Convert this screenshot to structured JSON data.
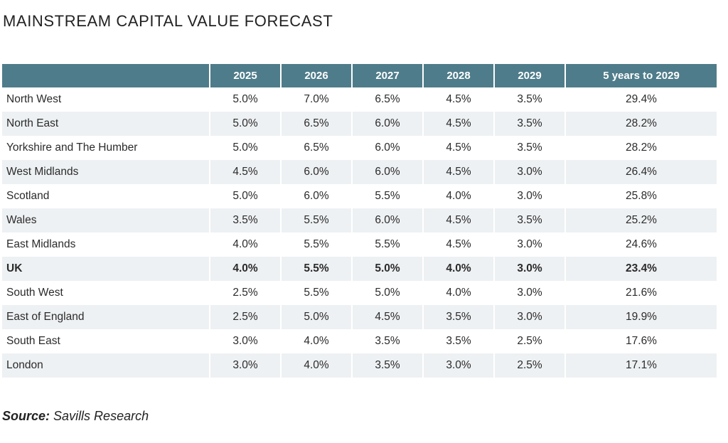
{
  "chart_data": {
    "type": "table",
    "title": "MAINSTREAM CAPITAL VALUE FORECAST",
    "columns": [
      "",
      "2025",
      "2026",
      "2027",
      "2028",
      "2029",
      "5 years to 2029"
    ],
    "rows": [
      {
        "region": "North West",
        "values": [
          "5.0%",
          "7.0%",
          "6.5%",
          "4.5%",
          "3.5%",
          "29.4%"
        ],
        "bold": false
      },
      {
        "region": "North East",
        "values": [
          "5.0%",
          "6.5%",
          "6.0%",
          "4.5%",
          "3.5%",
          "28.2%"
        ],
        "bold": false
      },
      {
        "region": "Yorkshire and The Humber",
        "values": [
          "5.0%",
          "6.5%",
          "6.0%",
          "4.5%",
          "3.5%",
          "28.2%"
        ],
        "bold": false
      },
      {
        "region": "West Midlands",
        "values": [
          "4.5%",
          "6.0%",
          "6.0%",
          "4.5%",
          "3.0%",
          "26.4%"
        ],
        "bold": false
      },
      {
        "region": "Scotland",
        "values": [
          "5.0%",
          "6.0%",
          "5.5%",
          "4.0%",
          "3.0%",
          "25.8%"
        ],
        "bold": false
      },
      {
        "region": "Wales",
        "values": [
          "3.5%",
          "5.5%",
          "6.0%",
          "4.5%",
          "3.5%",
          "25.2%"
        ],
        "bold": false
      },
      {
        "region": "East Midlands",
        "values": [
          "4.0%",
          "5.5%",
          "5.5%",
          "4.5%",
          "3.0%",
          "24.6%"
        ],
        "bold": false
      },
      {
        "region": "UK",
        "values": [
          "4.0%",
          "5.5%",
          "5.0%",
          "4.0%",
          "3.0%",
          "23.4%"
        ],
        "bold": true
      },
      {
        "region": "South West",
        "values": [
          "2.5%",
          "5.5%",
          "5.0%",
          "4.0%",
          "3.0%",
          "21.6%"
        ],
        "bold": false
      },
      {
        "region": "East of England",
        "values": [
          "2.5%",
          "5.0%",
          "4.5%",
          "3.5%",
          "3.0%",
          "19.9%"
        ],
        "bold": false
      },
      {
        "region": "South East",
        "values": [
          "3.0%",
          "4.0%",
          "3.5%",
          "3.5%",
          "2.5%",
          "17.6%"
        ],
        "bold": false
      },
      {
        "region": "London",
        "values": [
          "3.0%",
          "4.0%",
          "3.5%",
          "3.0%",
          "2.5%",
          "17.1%"
        ],
        "bold": false
      }
    ],
    "header_color": "#4f7c8a",
    "stripe_color": "#eef1f3"
  },
  "source": {
    "label": "Source:",
    "text": "Savills Research"
  }
}
